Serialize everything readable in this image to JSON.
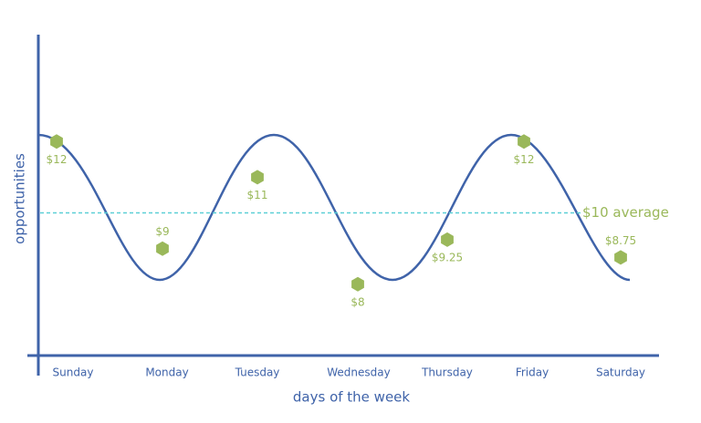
{
  "chart_data": {
    "type": "scatter",
    "x_label": "days of the week",
    "y_label": "opportunities",
    "categories": [
      "Sunday",
      "Monday",
      "Tuesday",
      "Wednesday",
      "Thursday",
      "Friday",
      "Saturday"
    ],
    "values": [
      12,
      9,
      11,
      8,
      9.25,
      12,
      8.75
    ],
    "value_labels": [
      "$12",
      "$9",
      "$11",
      "$8",
      "$9.25",
      "$12",
      "$8.75"
    ],
    "color": "#9ab85a",
    "ylim": [
      6,
      15
    ],
    "average": {
      "value": 10,
      "label": "$10 average",
      "color": "#5ccfd6"
    }
  }
}
